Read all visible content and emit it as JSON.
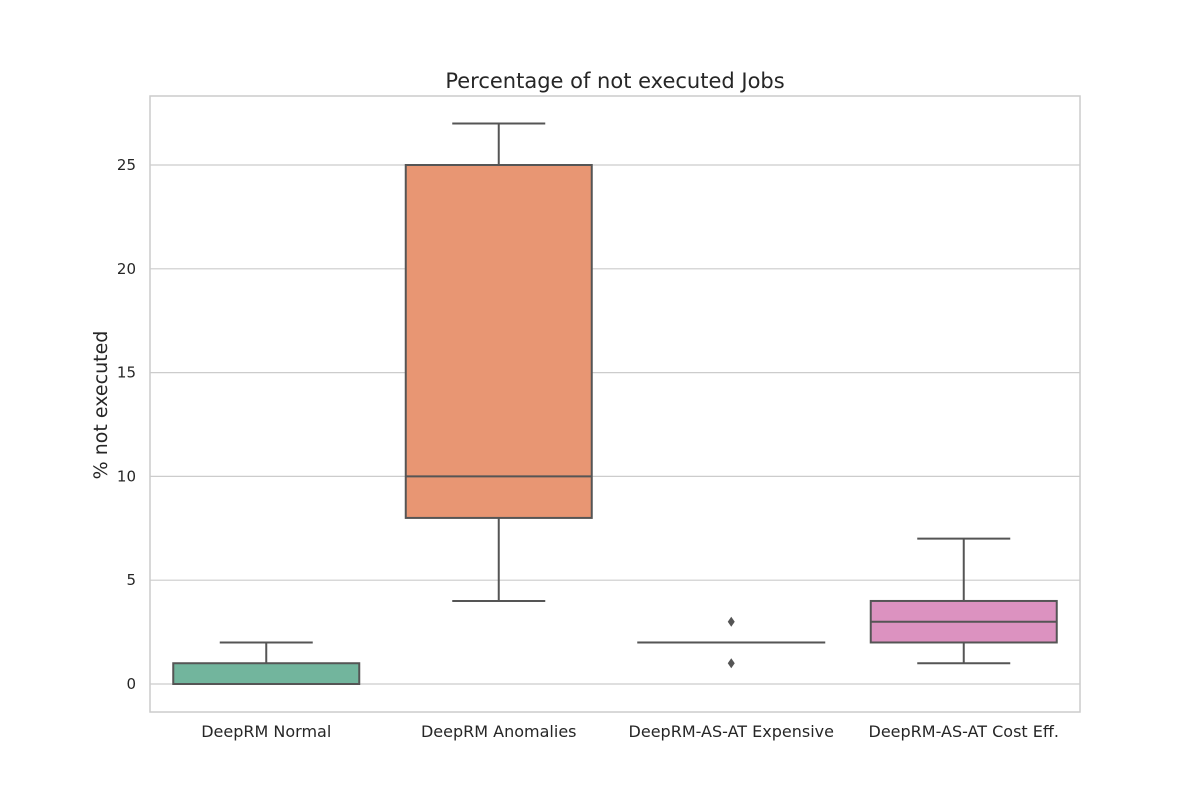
{
  "chart_data": {
    "type": "box",
    "title": "Percentage of not executed Jobs",
    "xlabel": "",
    "ylabel": "% not executed",
    "ylim": [
      -1.3,
      28.4
    ],
    "yticks": [
      0,
      5,
      10,
      15,
      20,
      25
    ],
    "grid": true,
    "categories": [
      "DeepRM Normal",
      "DeepRM Anomalies",
      "DeepRM-AS-AT Expensive",
      "DeepRM-AS-AT Cost Eff."
    ],
    "boxes": [
      {
        "whisker_low": 0,
        "q1": 0,
        "median": 0,
        "q3": 1,
        "whisker_high": 2,
        "outliers": [],
        "color": "#72b59d"
      },
      {
        "whisker_low": 4,
        "q1": 8,
        "median": 10,
        "q3": 25,
        "whisker_high": 27,
        "outliers": [],
        "color": "#e89673"
      },
      {
        "whisker_low": 2,
        "q1": 2,
        "median": 2,
        "q3": 2,
        "whisker_high": 2,
        "outliers": [
          1,
          3
        ],
        "color": "#8e9bc2"
      },
      {
        "whisker_low": 1,
        "q1": 2,
        "median": 3,
        "q3": 4,
        "whisker_high": 7,
        "outliers": [],
        "color": "#dc92c0"
      }
    ]
  }
}
